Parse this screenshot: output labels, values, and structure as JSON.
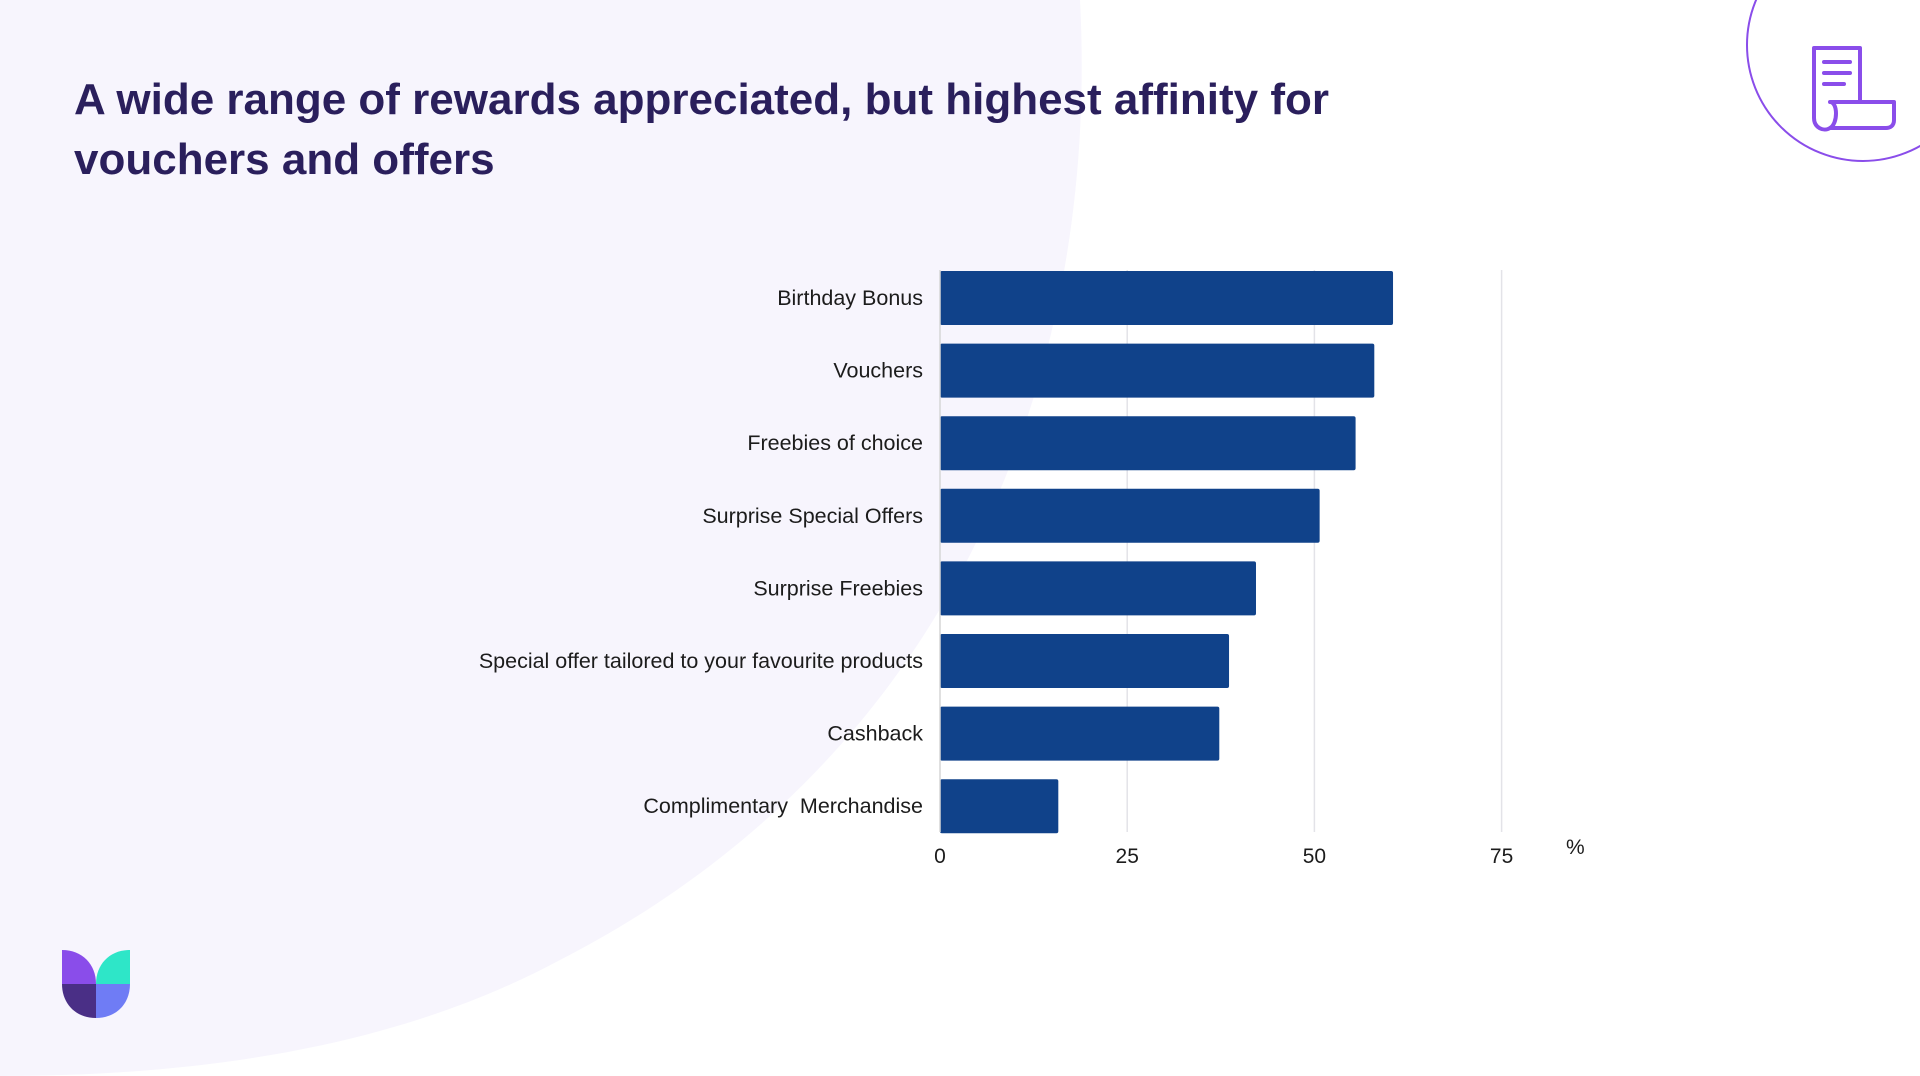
{
  "slide": {
    "title": "A wide range of rewards appreciated, but highest affinity for vouchers and offers",
    "colors": {
      "title": "#2a1f5c",
      "bar": "#10428a",
      "gridline": "#e3e3e8",
      "background_blob": "#f7f5fd",
      "accent_purple": "#8a4dea",
      "accent_teal": "#2ee6c8"
    },
    "icons": [
      "receipt-icon",
      "brand-logo-icon"
    ]
  },
  "chart_data": {
    "type": "bar",
    "orientation": "horizontal",
    "categories": [
      "Birthday Bonus",
      "Vouchers",
      "Freebies of choice",
      "Surprise Special Offers",
      "Surprise Freebies",
      "Special offer tailored to your favourite products",
      "Cashback",
      "Complimentary  Merchandise"
    ],
    "values": [
      60.5,
      58,
      55.5,
      50.7,
      42.2,
      38.6,
      37.3,
      15.8
    ],
    "xlim": [
      0,
      75
    ],
    "xticks": [
      0,
      25,
      50,
      75
    ],
    "xtick_labels": [
      "0",
      "25",
      "50",
      "75"
    ],
    "unit_label": "%",
    "grid": true,
    "legend": "none"
  }
}
